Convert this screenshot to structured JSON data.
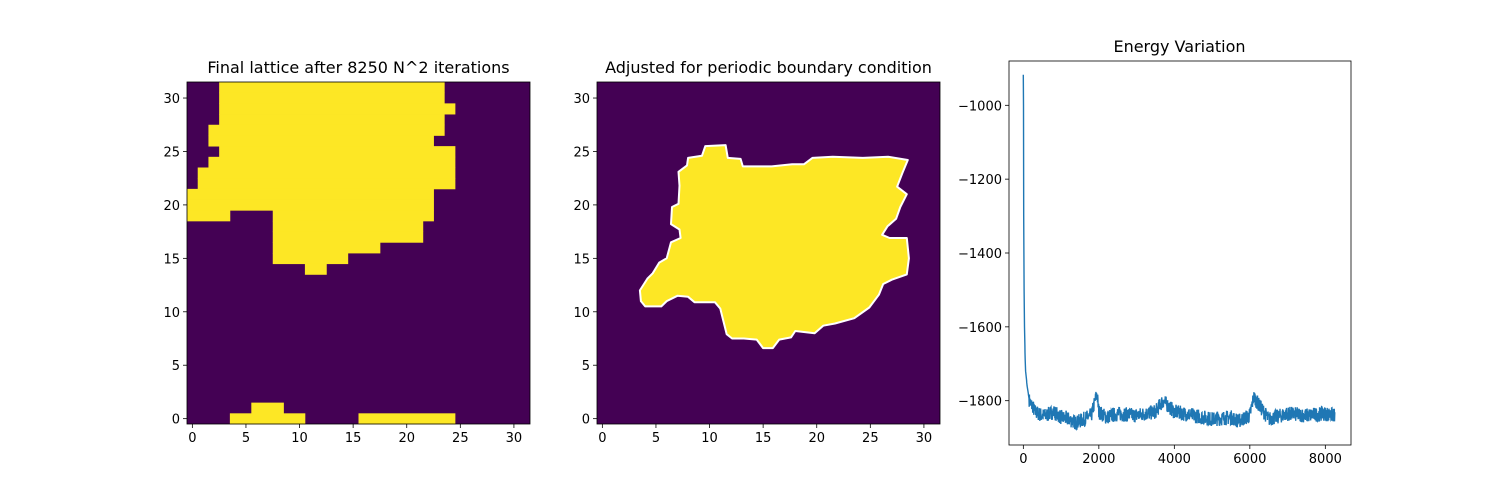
{
  "chart_data": [
    {
      "type": "heatmap",
      "title": "Final lattice after 8250 N^2 iterations",
      "xlim": [
        -0.5,
        31.5
      ],
      "ylim": [
        -0.5,
        31.5
      ],
      "xticks": [
        0,
        5,
        10,
        15,
        20,
        25,
        30
      ],
      "yticks": [
        0,
        5,
        10,
        15,
        20,
        25,
        30
      ],
      "colors": {
        "low": "#440154",
        "high": "#fde725"
      },
      "description": "Binary lattice; listed rows give [row, col_start, col_end] inclusive runs of high (yellow) cells; all other cells low (purple)",
      "high_runs": [
        [
          31,
          3,
          23
        ],
        [
          30,
          3,
          23
        ],
        [
          29,
          3,
          24
        ],
        [
          28,
          3,
          23
        ],
        [
          27,
          2,
          23
        ],
        [
          26,
          2,
          22
        ],
        [
          25,
          3,
          24
        ],
        [
          24,
          2,
          24
        ],
        [
          23,
          1,
          24
        ],
        [
          22,
          1,
          24
        ],
        [
          21,
          0,
          22
        ],
        [
          20,
          0,
          22
        ],
        [
          19,
          0,
          3
        ],
        [
          19,
          8,
          22
        ],
        [
          18,
          8,
          21
        ],
        [
          17,
          8,
          21
        ],
        [
          16,
          8,
          17
        ],
        [
          15,
          8,
          14
        ],
        [
          14,
          11,
          12
        ],
        [
          1,
          6,
          8
        ],
        [
          0,
          4,
          10
        ],
        [
          0,
          16,
          24
        ]
      ]
    },
    {
      "type": "heatmap",
      "title": "Adjusted for periodic boundary condition",
      "xlim": [
        -0.5,
        31.5
      ],
      "ylim": [
        -0.5,
        31.5
      ],
      "xticks": [
        0,
        5,
        10,
        15,
        20,
        25,
        30
      ],
      "yticks": [
        0,
        5,
        10,
        15,
        20,
        25,
        30
      ],
      "colors": {
        "low": "#440154",
        "high": "#fde725",
        "contour": "#ffffff"
      },
      "description": "Single yellow cluster outlined with white contour; outline vertices in data units (x, y)",
      "contour": [
        [
          3.5,
          12
        ],
        [
          4.2,
          13.1
        ],
        [
          4.7,
          13.6
        ],
        [
          5.3,
          14.6
        ],
        [
          6.0,
          15.0
        ],
        [
          6.4,
          16.5
        ],
        [
          7.3,
          16.9
        ],
        [
          7.2,
          17.7
        ],
        [
          6.4,
          18.2
        ],
        [
          6.5,
          19.8
        ],
        [
          7.1,
          20.1
        ],
        [
          7.2,
          21.8
        ],
        [
          7.1,
          23.1
        ],
        [
          7.9,
          23.7
        ],
        [
          8.0,
          24.4
        ],
        [
          9.3,
          24.6
        ],
        [
          9.6,
          25.5
        ],
        [
          11.5,
          25.6
        ],
        [
          11.7,
          24.4
        ],
        [
          12.9,
          24.3
        ],
        [
          13.1,
          23.6
        ],
        [
          15.8,
          23.6
        ],
        [
          17.7,
          23.8
        ],
        [
          18.8,
          23.8
        ],
        [
          19.6,
          24.4
        ],
        [
          21.5,
          24.5
        ],
        [
          24.3,
          24.4
        ],
        [
          26.7,
          24.5
        ],
        [
          28.5,
          24.2
        ],
        [
          28.0,
          23.0
        ],
        [
          27.5,
          21.7
        ],
        [
          28.4,
          21.0
        ],
        [
          27.8,
          19.8
        ],
        [
          27.4,
          18.7
        ],
        [
          26.6,
          18.0
        ],
        [
          26.1,
          17.2
        ],
        [
          26.8,
          16.9
        ],
        [
          28.4,
          16.9
        ],
        [
          28.6,
          15.0
        ],
        [
          28.4,
          13.5
        ],
        [
          27.0,
          13.0
        ],
        [
          26.2,
          12.6
        ],
        [
          25.8,
          11.6
        ],
        [
          24.9,
          10.4
        ],
        [
          23.5,
          9.4
        ],
        [
          21.7,
          8.9
        ],
        [
          20.6,
          8.7
        ],
        [
          19.8,
          8.0
        ],
        [
          18.0,
          8.2
        ],
        [
          17.6,
          7.6
        ],
        [
          16.5,
          7.4
        ],
        [
          15.9,
          6.6
        ],
        [
          15.0,
          6.6
        ],
        [
          14.4,
          7.4
        ],
        [
          13.2,
          7.5
        ],
        [
          12.1,
          7.5
        ],
        [
          11.6,
          7.9
        ],
        [
          11.2,
          9.5
        ],
        [
          11.0,
          10.3
        ],
        [
          10.5,
          10.9
        ],
        [
          8.6,
          10.9
        ],
        [
          8.0,
          11.4
        ],
        [
          7.0,
          11.5
        ],
        [
          6.0,
          11.0
        ],
        [
          5.5,
          10.5
        ],
        [
          4.0,
          10.5
        ],
        [
          3.6,
          11.0
        ]
      ]
    },
    {
      "type": "line",
      "title": "Energy Variation",
      "xlim": [
        -380,
        8680
      ],
      "ylim": [
        -1920,
        -880
      ],
      "xticks": [
        0,
        2000,
        4000,
        6000,
        8000
      ],
      "yticks": [
        -1000,
        -1200,
        -1400,
        -1600,
        -1800
      ],
      "color": "#1f77b4",
      "description": "Energy per step for 8250 steps: sharp drop from about -917 to about -1750 within the first ~150 steps, then noisy plateau near -1840",
      "x": [
        0,
        5,
        10,
        20,
        30,
        40,
        50,
        60,
        80,
        100,
        130,
        160,
        200,
        250,
        300,
        400,
        500,
        600,
        700,
        800,
        1000,
        1200,
        1400,
        1600,
        1800,
        1950,
        2000,
        2200,
        2500,
        3000,
        3500,
        3700,
        3800,
        4000,
        4500,
        5000,
        5500,
        5700,
        6000,
        6100,
        6500,
        7000,
        7500,
        8000,
        8250
      ],
      "y": [
        -917,
        -1000,
        -1300,
        -1500,
        -1600,
        -1650,
        -1690,
        -1720,
        -1740,
        -1760,
        -1780,
        -1800,
        -1810,
        -1815,
        -1830,
        -1835,
        -1840,
        -1840,
        -1835,
        -1830,
        -1845,
        -1850,
        -1860,
        -1850,
        -1840,
        -1780,
        -1830,
        -1845,
        -1835,
        -1840,
        -1830,
        -1800,
        -1810,
        -1830,
        -1840,
        -1850,
        -1845,
        -1855,
        -1840,
        -1790,
        -1850,
        -1835,
        -1840,
        -1835,
        -1840
      ]
    }
  ]
}
